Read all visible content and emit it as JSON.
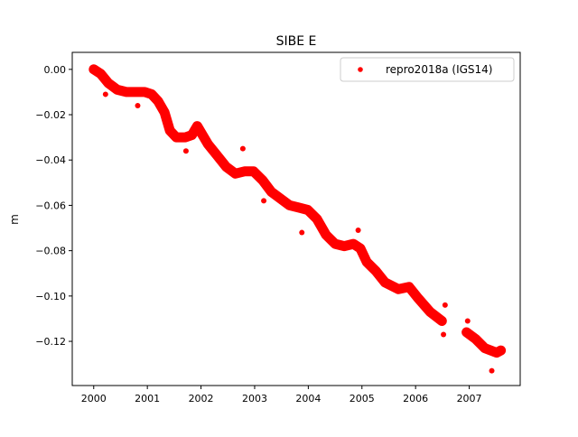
{
  "chart_data": {
    "type": "scatter",
    "title": "SIBE E",
    "xlabel": "",
    "ylabel": "m",
    "xlim": [
      1999.6,
      2007.95
    ],
    "ylim": [
      -0.1395,
      0.0075
    ],
    "xticks": [
      2000,
      2001,
      2002,
      2003,
      2004,
      2005,
      2006,
      2007
    ],
    "xtick_labels": [
      "2000",
      "2001",
      "2002",
      "2003",
      "2004",
      "2005",
      "2006",
      "2007"
    ],
    "yticks": [
      0.0,
      -0.02,
      -0.04,
      -0.06,
      -0.08,
      -0.1,
      -0.12
    ],
    "ytick_labels": [
      "0.00",
      "−0.02",
      "−0.04",
      "−0.06",
      "−0.08",
      "−0.10",
      "−0.12"
    ],
    "grid": false,
    "legend": {
      "placement": "top-right",
      "entries": [
        "repro2018a (IGS14)"
      ]
    },
    "series": [
      {
        "name": "repro2018a (IGS14)",
        "color": "#ff0000",
        "segments": [
          [
            [
              2000.0,
              0.0
            ],
            [
              2000.13,
              -0.002
            ],
            [
              2000.27,
              -0.006
            ],
            [
              2000.44,
              -0.009
            ],
            [
              2000.61,
              -0.01
            ],
            [
              2000.78,
              -0.01
            ],
            [
              2000.95,
              -0.01
            ],
            [
              2001.08,
              -0.011
            ],
            [
              2001.2,
              -0.014
            ],
            [
              2001.32,
              -0.019
            ],
            [
              2001.42,
              -0.027
            ],
            [
              2001.54,
              -0.03
            ],
            [
              2001.71,
              -0.03
            ],
            [
              2001.83,
              -0.029
            ],
            [
              2001.93,
              -0.025
            ],
            [
              2002.03,
              -0.029
            ],
            [
              2002.13,
              -0.033
            ],
            [
              2002.3,
              -0.038
            ],
            [
              2002.47,
              -0.043
            ],
            [
              2002.64,
              -0.046
            ],
            [
              2002.81,
              -0.045
            ],
            [
              2002.98,
              -0.045
            ],
            [
              2003.15,
              -0.049
            ],
            [
              2003.31,
              -0.054
            ],
            [
              2003.48,
              -0.057
            ],
            [
              2003.65,
              -0.06
            ],
            [
              2003.82,
              -0.061
            ],
            [
              2003.99,
              -0.062
            ],
            [
              2004.16,
              -0.066
            ],
            [
              2004.33,
              -0.073
            ],
            [
              2004.5,
              -0.077
            ],
            [
              2004.67,
              -0.078
            ],
            [
              2004.84,
              -0.077
            ],
            [
              2004.97,
              -0.079
            ],
            [
              2005.09,
              -0.085
            ],
            [
              2005.26,
              -0.089
            ],
            [
              2005.43,
              -0.094
            ],
            [
              2005.68,
              -0.097
            ],
            [
              2005.88,
              -0.096
            ],
            [
              2006.05,
              -0.101
            ],
            [
              2006.27,
              -0.107
            ],
            [
              2006.49,
              -0.111
            ]
          ],
          [
            [
              2006.95,
              -0.116
            ],
            [
              2007.12,
              -0.119
            ],
            [
              2007.29,
              -0.123
            ],
            [
              2007.51,
              -0.125
            ],
            [
              2007.59,
              -0.124
            ]
          ]
        ],
        "outliers": [
          [
            2000.22,
            -0.011
          ],
          [
            2000.82,
            -0.016
          ],
          [
            2001.1,
            -0.012
          ],
          [
            2001.72,
            -0.036
          ],
          [
            2002.78,
            -0.035
          ],
          [
            2003.17,
            -0.058
          ],
          [
            2003.88,
            -0.072
          ],
          [
            2004.93,
            -0.071
          ],
          [
            2006.52,
            -0.117
          ],
          [
            2006.55,
            -0.104
          ],
          [
            2006.97,
            -0.111
          ],
          [
            2007.42,
            -0.133
          ]
        ]
      }
    ]
  }
}
